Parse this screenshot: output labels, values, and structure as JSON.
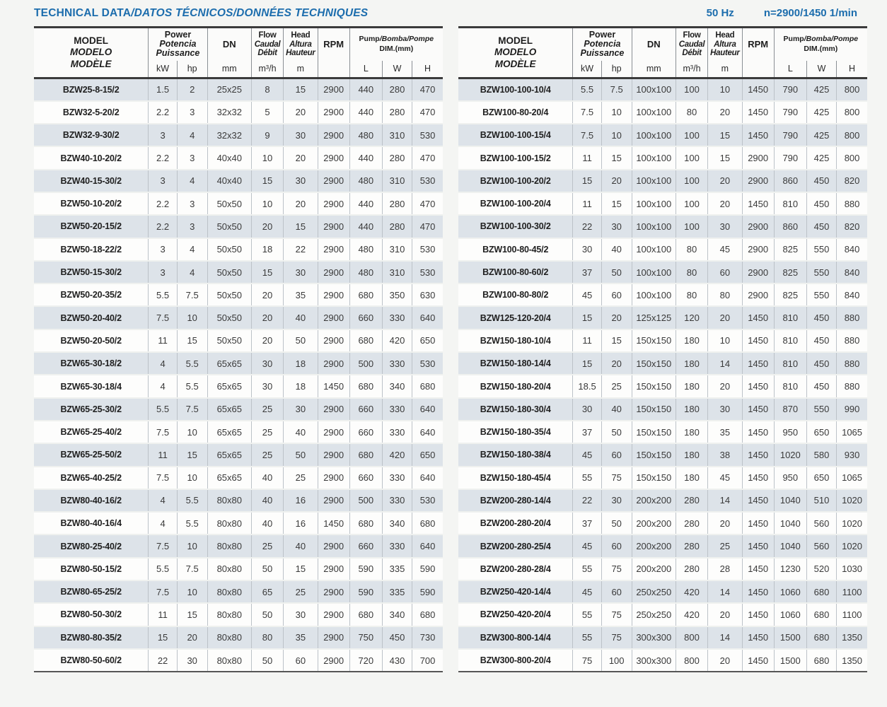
{
  "title_en": "TECHNICAL DATA",
  "title_rest": "/DATOS TÉCNICOS/DONNÉES TECHNIQUES",
  "frequency": "50 Hz",
  "speed": "n=2900/1450 1/min",
  "colors": {
    "accent_blue": "#1c6dad",
    "row_shaded": "#dde3e9",
    "row_plain": "#fdfdfc",
    "header_border": "#3b3b3b",
    "grid_line": "#bcc2c8"
  },
  "header": {
    "model": [
      "MODEL",
      "MODELO",
      "MODÈLE"
    ],
    "power": [
      "Power",
      "Potencia",
      "Puissance"
    ],
    "power_units": [
      "kW",
      "hp"
    ],
    "dn_label": "DN",
    "dn_unit": "mm",
    "flow": [
      "Flow",
      "Caudal",
      "Débit"
    ],
    "flow_unit": "m³/h",
    "head": [
      "Head",
      "Altura",
      "Hauteur"
    ],
    "head_unit": "m",
    "rpm_label": "RPM",
    "dim_label_en": "Pump",
    "dim_label_rest": "/Bomba/Pompe",
    "dim_sublabel": "DIM.(mm)",
    "dim_units": [
      "L",
      "W",
      "H"
    ]
  },
  "tables": [
    {
      "rows": [
        [
          "BZW25-8-15/2",
          "1.5",
          "2",
          "25x25",
          "8",
          "15",
          "2900",
          "440",
          "280",
          "470"
        ],
        [
          "BZW32-5-20/2",
          "2.2",
          "3",
          "32x32",
          "5",
          "20",
          "2900",
          "440",
          "280",
          "470"
        ],
        [
          "BZW32-9-30/2",
          "3",
          "4",
          "32x32",
          "9",
          "30",
          "2900",
          "480",
          "310",
          "530"
        ],
        [
          "BZW40-10-20/2",
          "2.2",
          "3",
          "40x40",
          "10",
          "20",
          "2900",
          "440",
          "280",
          "470"
        ],
        [
          "BZW40-15-30/2",
          "3",
          "4",
          "40x40",
          "15",
          "30",
          "2900",
          "480",
          "310",
          "530"
        ],
        [
          "BZW50-10-20/2",
          "2.2",
          "3",
          "50x50",
          "10",
          "20",
          "2900",
          "440",
          "280",
          "470"
        ],
        [
          "BZW50-20-15/2",
          "2.2",
          "3",
          "50x50",
          "20",
          "15",
          "2900",
          "440",
          "280",
          "470"
        ],
        [
          "BZW50-18-22/2",
          "3",
          "4",
          "50x50",
          "18",
          "22",
          "2900",
          "480",
          "310",
          "530"
        ],
        [
          "BZW50-15-30/2",
          "3",
          "4",
          "50x50",
          "15",
          "30",
          "2900",
          "480",
          "310",
          "530"
        ],
        [
          "BZW50-20-35/2",
          "5.5",
          "7.5",
          "50x50",
          "20",
          "35",
          "2900",
          "680",
          "350",
          "630"
        ],
        [
          "BZW50-20-40/2",
          "7.5",
          "10",
          "50x50",
          "20",
          "40",
          "2900",
          "660",
          "330",
          "640"
        ],
        [
          "BZW50-20-50/2",
          "11",
          "15",
          "50x50",
          "20",
          "50",
          "2900",
          "680",
          "420",
          "650"
        ],
        [
          "BZW65-30-18/2",
          "4",
          "5.5",
          "65x65",
          "30",
          "18",
          "2900",
          "500",
          "330",
          "530"
        ],
        [
          "BZW65-30-18/4",
          "4",
          "5.5",
          "65x65",
          "30",
          "18",
          "1450",
          "680",
          "340",
          "680"
        ],
        [
          "BZW65-25-30/2",
          "5.5",
          "7.5",
          "65x65",
          "25",
          "30",
          "2900",
          "660",
          "330",
          "640"
        ],
        [
          "BZW65-25-40/2",
          "7.5",
          "10",
          "65x65",
          "25",
          "40",
          "2900",
          "660",
          "330",
          "640"
        ],
        [
          "BZW65-25-50/2",
          "11",
          "15",
          "65x65",
          "25",
          "50",
          "2900",
          "680",
          "420",
          "650"
        ],
        [
          "BZW65-40-25/2",
          "7.5",
          "10",
          "65x65",
          "40",
          "25",
          "2900",
          "660",
          "330",
          "640"
        ],
        [
          "BZW80-40-16/2",
          "4",
          "5.5",
          "80x80",
          "40",
          "16",
          "2900",
          "500",
          "330",
          "530"
        ],
        [
          "BZW80-40-16/4",
          "4",
          "5.5",
          "80x80",
          "40",
          "16",
          "1450",
          "680",
          "340",
          "680"
        ],
        [
          "BZW80-25-40/2",
          "7.5",
          "10",
          "80x80",
          "25",
          "40",
          "2900",
          "660",
          "330",
          "640"
        ],
        [
          "BZW80-50-15/2",
          "5.5",
          "7.5",
          "80x80",
          "50",
          "15",
          "2900",
          "590",
          "335",
          "590"
        ],
        [
          "BZW80-65-25/2",
          "7.5",
          "10",
          "80x80",
          "65",
          "25",
          "2900",
          "590",
          "335",
          "590"
        ],
        [
          "BZW80-50-30/2",
          "11",
          "15",
          "80x80",
          "50",
          "30",
          "2900",
          "680",
          "340",
          "680"
        ],
        [
          "BZW80-80-35/2",
          "15",
          "20",
          "80x80",
          "80",
          "35",
          "2900",
          "750",
          "450",
          "730"
        ],
        [
          "BZW80-50-60/2",
          "22",
          "30",
          "80x80",
          "50",
          "60",
          "2900",
          "720",
          "430",
          "700"
        ]
      ]
    },
    {
      "rows": [
        [
          "BZW100-100-10/4",
          "5.5",
          "7.5",
          "100x100",
          "100",
          "10",
          "1450",
          "790",
          "425",
          "800"
        ],
        [
          "BZW100-80-20/4",
          "7.5",
          "10",
          "100x100",
          "80",
          "20",
          "1450",
          "790",
          "425",
          "800"
        ],
        [
          "BZW100-100-15/4",
          "7.5",
          "10",
          "100x100",
          "100",
          "15",
          "1450",
          "790",
          "425",
          "800"
        ],
        [
          "BZW100-100-15/2",
          "11",
          "15",
          "100x100",
          "100",
          "15",
          "2900",
          "790",
          "425",
          "800"
        ],
        [
          "BZW100-100-20/2",
          "15",
          "20",
          "100x100",
          "100",
          "20",
          "2900",
          "860",
          "450",
          "820"
        ],
        [
          "BZW100-100-20/4",
          "11",
          "15",
          "100x100",
          "100",
          "20",
          "1450",
          "810",
          "450",
          "880"
        ],
        [
          "BZW100-100-30/2",
          "22",
          "30",
          "100x100",
          "100",
          "30",
          "2900",
          "860",
          "450",
          "820"
        ],
        [
          "BZW100-80-45/2",
          "30",
          "40",
          "100x100",
          "80",
          "45",
          "2900",
          "825",
          "550",
          "840"
        ],
        [
          "BZW100-80-60/2",
          "37",
          "50",
          "100x100",
          "80",
          "60",
          "2900",
          "825",
          "550",
          "840"
        ],
        [
          "BZW100-80-80/2",
          "45",
          "60",
          "100x100",
          "80",
          "80",
          "2900",
          "825",
          "550",
          "840"
        ],
        [
          "BZW125-120-20/4",
          "15",
          "20",
          "125x125",
          "120",
          "20",
          "1450",
          "810",
          "450",
          "880"
        ],
        [
          "BZW150-180-10/4",
          "11",
          "15",
          "150x150",
          "180",
          "10",
          "1450",
          "810",
          "450",
          "880"
        ],
        [
          "BZW150-180-14/4",
          "15",
          "20",
          "150x150",
          "180",
          "14",
          "1450",
          "810",
          "450",
          "880"
        ],
        [
          "BZW150-180-20/4",
          "18.5",
          "25",
          "150x150",
          "180",
          "20",
          "1450",
          "810",
          "450",
          "880"
        ],
        [
          "BZW150-180-30/4",
          "30",
          "40",
          "150x150",
          "180",
          "30",
          "1450",
          "870",
          "550",
          "990"
        ],
        [
          "BZW150-180-35/4",
          "37",
          "50",
          "150x150",
          "180",
          "35",
          "1450",
          "950",
          "650",
          "1065"
        ],
        [
          "BZW150-180-38/4",
          "45",
          "60",
          "150x150",
          "180",
          "38",
          "1450",
          "1020",
          "580",
          "930"
        ],
        [
          "BZW150-180-45/4",
          "55",
          "75",
          "150x150",
          "180",
          "45",
          "1450",
          "950",
          "650",
          "1065"
        ],
        [
          "BZW200-280-14/4",
          "22",
          "30",
          "200x200",
          "280",
          "14",
          "1450",
          "1040",
          "510",
          "1020"
        ],
        [
          "BZW200-280-20/4",
          "37",
          "50",
          "200x200",
          "280",
          "20",
          "1450",
          "1040",
          "560",
          "1020"
        ],
        [
          "BZW200-280-25/4",
          "45",
          "60",
          "200x200",
          "280",
          "25",
          "1450",
          "1040",
          "560",
          "1020"
        ],
        [
          "BZW200-280-28/4",
          "55",
          "75",
          "200x200",
          "280",
          "28",
          "1450",
          "1230",
          "520",
          "1030"
        ],
        [
          "BZW250-420-14/4",
          "45",
          "60",
          "250x250",
          "420",
          "14",
          "1450",
          "1060",
          "680",
          "1100"
        ],
        [
          "BZW250-420-20/4",
          "55",
          "75",
          "250x250",
          "420",
          "20",
          "1450",
          "1060",
          "680",
          "1100"
        ],
        [
          "BZW300-800-14/4",
          "55",
          "75",
          "300x300",
          "800",
          "14",
          "1450",
          "1500",
          "680",
          "1350"
        ],
        [
          "BZW300-800-20/4",
          "75",
          "100",
          "300x300",
          "800",
          "20",
          "1450",
          "1500",
          "680",
          "1350"
        ]
      ]
    }
  ]
}
